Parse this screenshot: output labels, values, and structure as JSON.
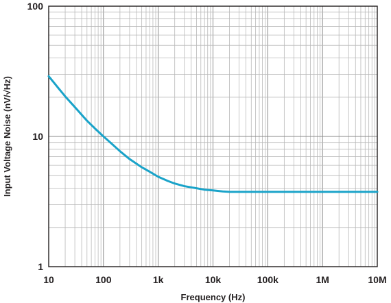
{
  "chart_data": {
    "type": "line",
    "title": "",
    "xlabel": "Frequency (Hz)",
    "ylabel": "Input Voltage Noise (nV/√Hz)",
    "xscale": "log",
    "yscale": "log",
    "xlim": [
      10,
      10000000
    ],
    "ylim": [
      1,
      100
    ],
    "grid": true,
    "x_tick_labels": [
      "10",
      "100",
      "1k",
      "10k",
      "100k",
      "1M",
      "10M"
    ],
    "y_tick_labels": [
      "1",
      "10",
      "100"
    ],
    "series": [
      {
        "color": "#1aa3c9",
        "x": [
          10,
          15,
          20,
          30,
          50,
          70,
          100,
          150,
          200,
          300,
          500,
          700,
          1000,
          1500,
          2000,
          3000,
          5000,
          7000,
          10000,
          15000,
          20000,
          30000,
          50000,
          100000,
          1000000,
          10000000
        ],
        "y": [
          29,
          23.5,
          20.3,
          16.8,
          13.2,
          11.5,
          10,
          8.6,
          7.7,
          6.7,
          5.8,
          5.35,
          4.9,
          4.55,
          4.35,
          4.15,
          4.0,
          3.9,
          3.85,
          3.78,
          3.75,
          3.75,
          3.75,
          3.75,
          3.75,
          3.75
        ]
      }
    ]
  }
}
